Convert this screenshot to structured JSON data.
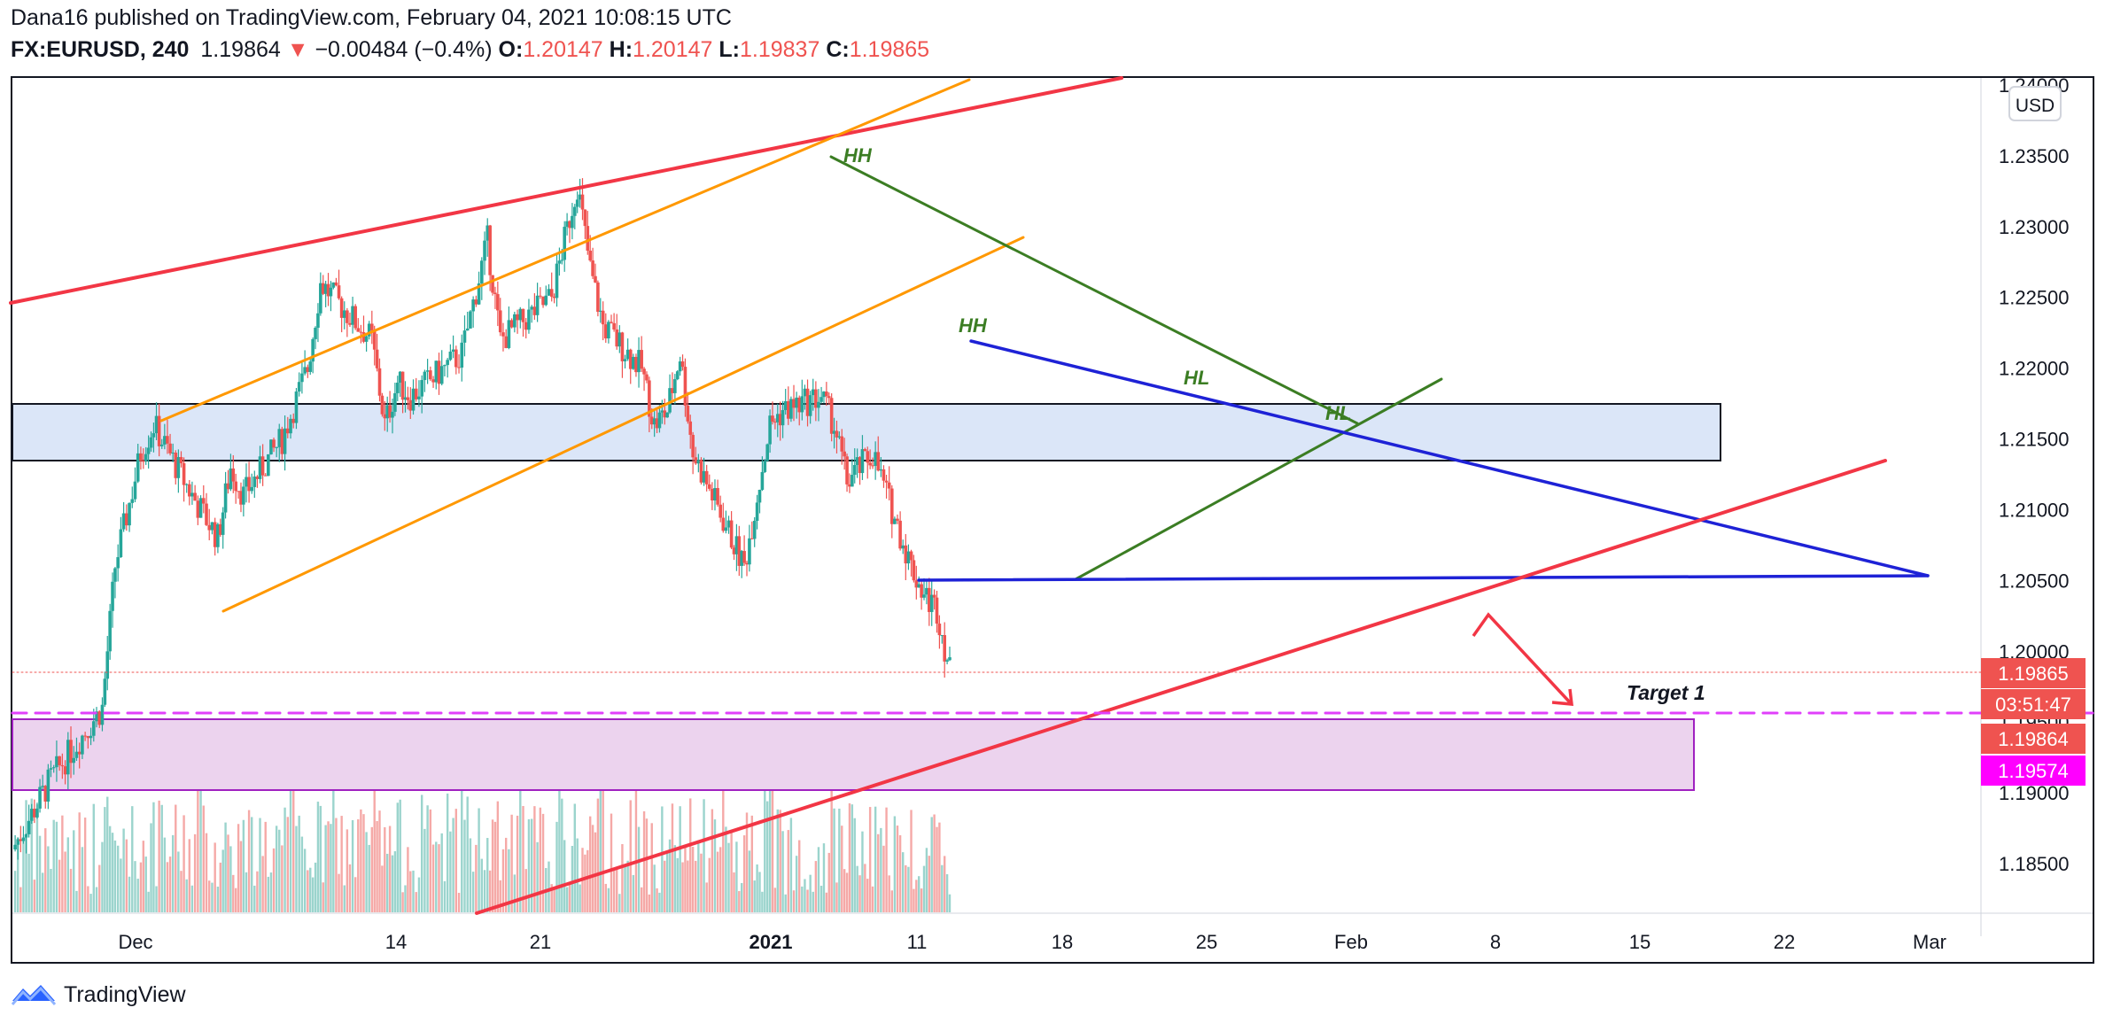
{
  "header": {
    "published": "Dana16 published on TradingView.com, February 04, 2021 10:08:15 UTC",
    "symbol": "FX:EURUSD, 240",
    "last": "1.19864",
    "change_arrow": "▼",
    "change": "−0.00484 (−0.4%)",
    "o_label": "O:",
    "o": "1.20147",
    "h_label": "H:",
    "h": "1.20147",
    "l_label": "L:",
    "l": "1.19837",
    "c_label": "C:",
    "c": "1.19865"
  },
  "footer": {
    "brand": "TradingView",
    "brand_icon": "tradingview-logo-icon"
  },
  "colors": {
    "up": "#26a69a",
    "down": "#ef5350",
    "red_line": "#f23645",
    "orange_line": "#ff9800",
    "green_line": "#3b7d23",
    "blue_line": "#1e22d6",
    "magenta": "#e040fb",
    "box_blue": "#dbe6f8",
    "box_purple": "#ecd3ee"
  },
  "chart_data": {
    "type": "candlestick",
    "instrument": "FX:EURUSD",
    "interval": "240",
    "currency": "USD",
    "ylim": [
      1.1815,
      1.2405
    ],
    "y_ticks": [
      "1.24000",
      "1.23500",
      "1.23000",
      "1.22500",
      "1.22000",
      "1.21500",
      "1.21000",
      "1.20500",
      "1.20000",
      "1.19500",
      "1.19000",
      "1.18500"
    ],
    "x_ticks": [
      "Dec",
      "14",
      "21",
      "2021",
      "11",
      "18",
      "25",
      "Feb",
      "8",
      "15",
      "22",
      "Mar"
    ],
    "closes_anchor": [
      [
        "Nov 23",
        1.186
      ],
      [
        "Nov 26",
        1.191
      ],
      [
        "Nov 30",
        1.196
      ],
      [
        "Dec 1",
        1.206
      ],
      [
        "Dec 3",
        1.214
      ],
      [
        "Dec 4",
        1.216
      ],
      [
        "Dec 7",
        1.211
      ],
      [
        "Dec 9",
        1.208
      ],
      [
        "Dec 10",
        1.213
      ],
      [
        "Dec 11",
        1.211
      ],
      [
        "Dec 14",
        1.215
      ],
      [
        "Dec 16",
        1.22
      ],
      [
        "Dec 17",
        1.226
      ],
      [
        "Dec 18",
        1.225
      ],
      [
        "Dec 21",
        1.222
      ],
      [
        "Dec 22",
        1.216
      ],
      [
        "Dec 23",
        1.219
      ],
      [
        "Dec 24",
        1.218
      ],
      [
        "Dec 28",
        1.221
      ],
      [
        "Dec 30",
        1.229
      ],
      [
        "Dec 31",
        1.222
      ],
      [
        "Jan 4",
        1.225
      ],
      [
        "Jan 5",
        1.229
      ],
      [
        "Jan 6",
        1.233
      ],
      [
        "Jan 7",
        1.227
      ],
      [
        "Jan 8",
        1.223
      ],
      [
        "Jan 11",
        1.22
      ],
      [
        "Jan 12",
        1.216
      ],
      [
        "Jan 13",
        1.217
      ],
      [
        "Jan 14",
        1.221
      ],
      [
        "Jan 15",
        1.214
      ],
      [
        "Jan 18",
        1.208
      ],
      [
        "Jan 19",
        1.206
      ],
      [
        "Jan 20",
        1.211
      ],
      [
        "Jan 21",
        1.216
      ],
      [
        "Jan 22",
        1.217
      ],
      [
        "Jan 25",
        1.218
      ],
      [
        "Jan 26",
        1.216
      ],
      [
        "Jan 27",
        1.212
      ],
      [
        "Jan 28",
        1.213
      ],
      [
        "Jan 29",
        1.214
      ],
      [
        "Feb 1",
        1.206
      ],
      [
        "Feb 2",
        1.204
      ],
      [
        "Feb 3",
        1.203
      ],
      [
        "Feb 4",
        1.1986
      ]
    ],
    "price_labels": [
      {
        "value": "1.19865",
        "role": "last-price"
      },
      {
        "value": "03:51:47",
        "role": "bar-countdown"
      },
      {
        "value": "1.19864",
        "role": "bid"
      },
      {
        "value": "1.19574",
        "role": "target-level"
      }
    ],
    "annotations": [
      {
        "text": "HH",
        "near": "Jan 6 top"
      },
      {
        "text": "HH",
        "near": "Jan 14 top"
      },
      {
        "text": "HL",
        "near": "Jan 25"
      },
      {
        "text": "HL",
        "near": "Jan 29"
      },
      {
        "text": "Target 1",
        "near": "1.19574"
      }
    ],
    "levels": {
      "target": 1.19574,
      "support": 1.2052,
      "zone_top": 1.2178,
      "zone_bottom": 1.2138,
      "demand_top": 1.1963,
      "demand_bottom": 1.1903
    },
    "grid": false,
    "legend": "none"
  }
}
